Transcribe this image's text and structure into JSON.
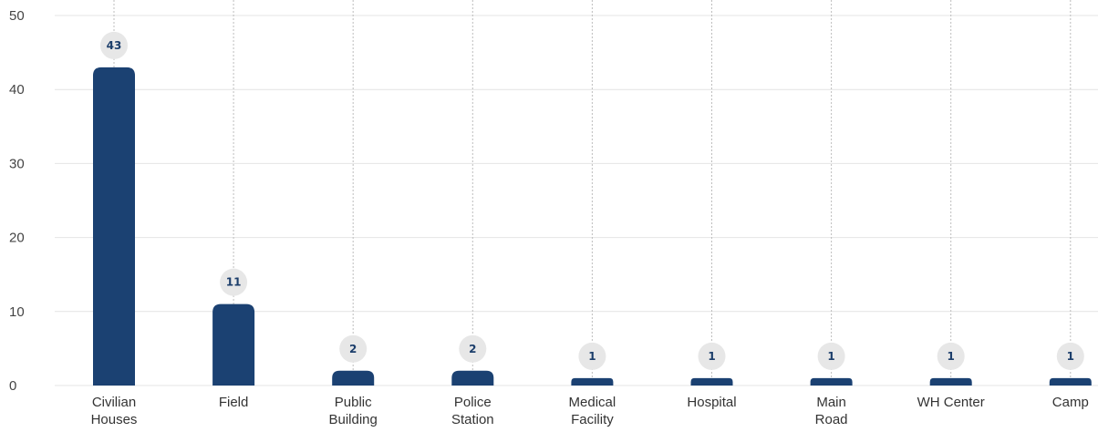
{
  "chart_data": {
    "type": "bar",
    "categories": [
      [
        "Civilian",
        "Houses"
      ],
      [
        "Field"
      ],
      [
        "Public",
        "Building"
      ],
      [
        "Police",
        "Station"
      ],
      [
        "Medical",
        "Facility"
      ],
      [
        "Hospital"
      ],
      [
        "Main",
        "Road"
      ],
      [
        "WH Center"
      ],
      [
        "Camp"
      ]
    ],
    "values": [
      43,
      11,
      2,
      2,
      1,
      1,
      1,
      1,
      1
    ],
    "data_labels": [
      "43",
      "11",
      "2",
      "2",
      "1",
      "1",
      "1",
      "1",
      "1"
    ],
    "ylim": [
      0,
      50
    ],
    "yticks": [
      "0",
      "10",
      "20",
      "30",
      "40",
      "50"
    ],
    "grid": true,
    "legend": "none",
    "title": "",
    "xlabel": "",
    "ylabel": "",
    "colors": {
      "bar": "#1b4172",
      "grid": "#e4e4e4",
      "guide": "#bdbdbd",
      "label_bg": "#e7e7e7",
      "label_text": "#1c3e6b"
    }
  }
}
